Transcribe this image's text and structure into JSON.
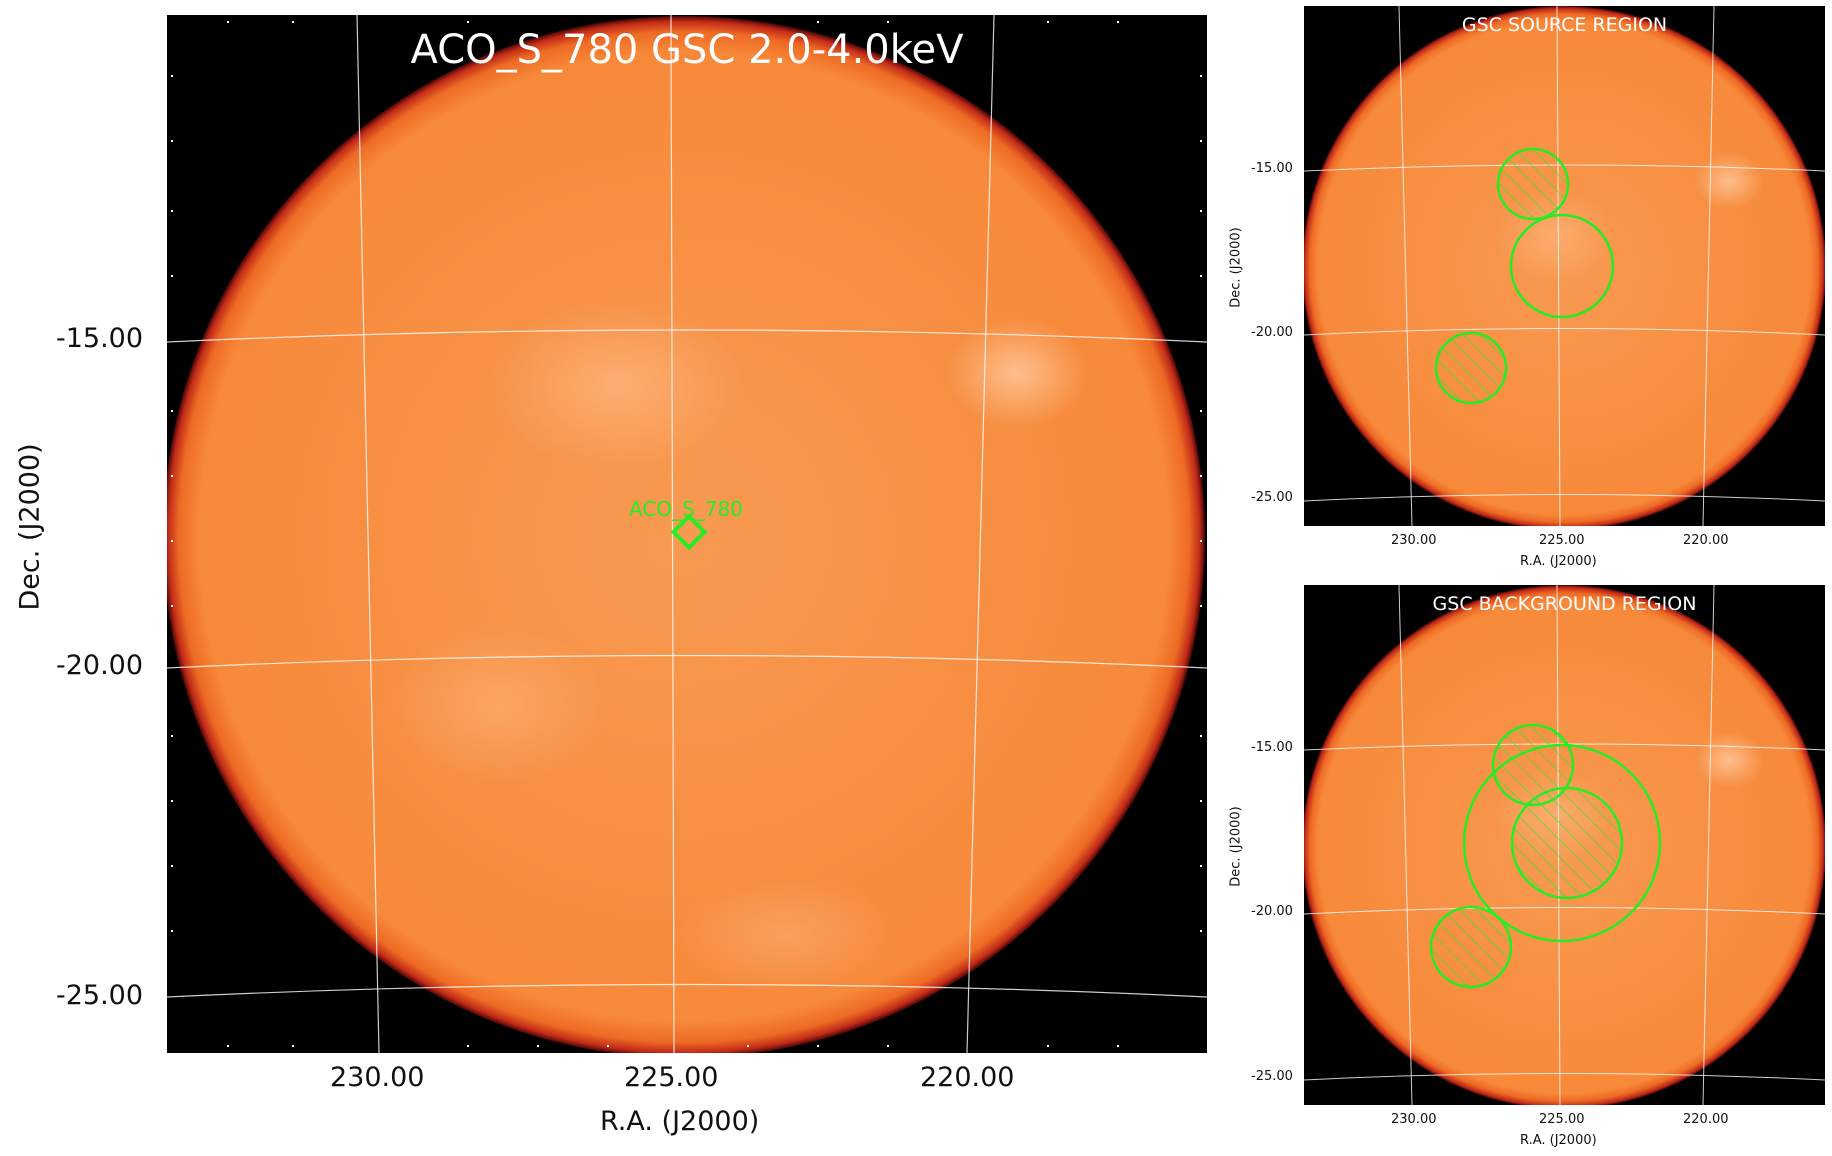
{
  "main": {
    "title": "ACO_S_780 GSC 2.0-4.0keV",
    "source_label": "ACO_S_780",
    "xlabel": "R.A. (J2000)",
    "ylabel": "Dec. (J2000)",
    "xticks": [
      "230.00",
      "225.00",
      "220.00"
    ],
    "yticks": [
      "-15.00",
      "-20.00",
      "-25.00"
    ]
  },
  "source_region": {
    "title": "GSC SOURCE REGION",
    "xlabel": "R.A. (J2000)",
    "ylabel": "Dec. (J2000)",
    "xticks": [
      "230.00",
      "225.00",
      "220.00"
    ],
    "yticks": [
      "-15.00",
      "-20.00",
      "-25.00"
    ]
  },
  "background_region": {
    "title": "GSC BACKGROUND REGION",
    "xlabel": "R.A. (J2000)",
    "ylabel": "Dec. (J2000)",
    "xticks": [
      "230.00",
      "225.00",
      "220.00"
    ],
    "yticks": [
      "-15.00",
      "-20.00",
      "-25.00"
    ]
  },
  "colors": {
    "disk": "#f58a3c",
    "disk_edge": "#b01818",
    "sky_background": "#000000",
    "region": "#22ee22",
    "grid": "#ffffff"
  }
}
